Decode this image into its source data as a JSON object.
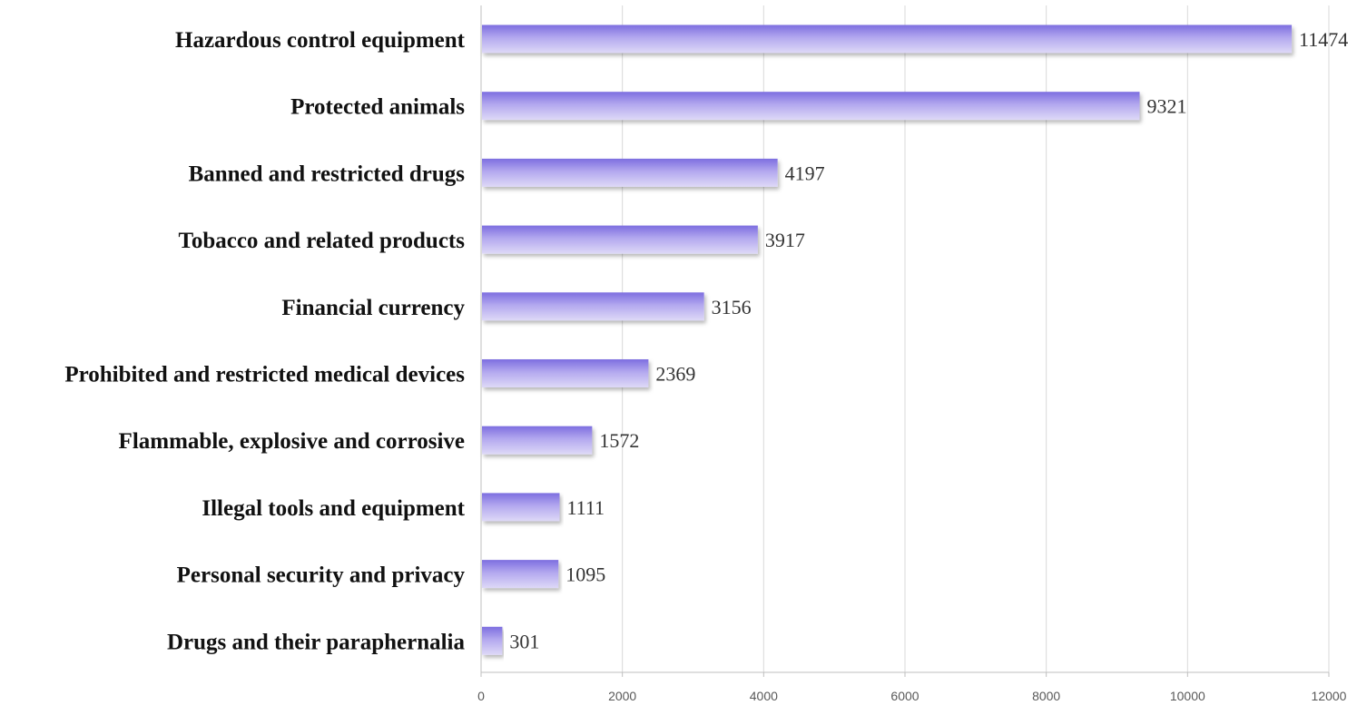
{
  "chart_data": {
    "type": "bar",
    "orientation": "horizontal",
    "title": "",
    "xlabel": "",
    "ylabel": "",
    "categories": [
      "Hazardous control equipment",
      "Protected animals",
      "Banned and restricted drugs",
      "Tobacco and related products",
      "Financial currency",
      "Prohibited and restricted medical devices",
      "Flammable, explosive and corrosive",
      "Illegal tools and equipment",
      "Personal security and privacy",
      "Drugs and their paraphernalia"
    ],
    "values": [
      11474,
      9321,
      4197,
      3917,
      3156,
      2369,
      1572,
      1111,
      1095,
      301
    ],
    "xlim": [
      0,
      12000
    ],
    "xticks": [
      0,
      2000,
      4000,
      6000,
      8000,
      10000,
      12000
    ],
    "grid": true,
    "legend": "none",
    "colors": {
      "bar_top": "#7d6ee0",
      "bar_mid": "#b3a8ef",
      "bar_bottom": "#ded9f7",
      "grid": "#d9d9d9",
      "axis": "#bfbfbf"
    }
  }
}
